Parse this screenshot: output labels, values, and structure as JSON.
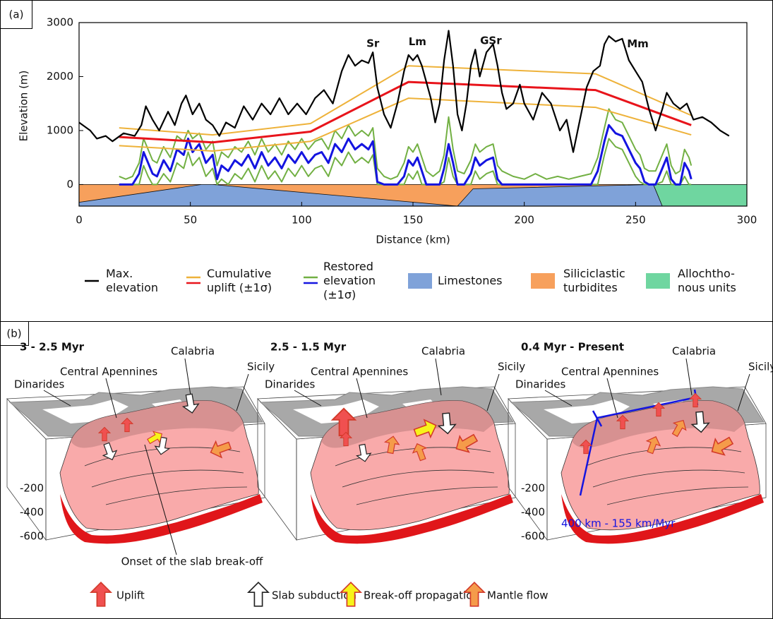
{
  "panel_a": {
    "label": "(a)"
  },
  "chart_data": {
    "type": "line",
    "xlabel": "Distance (km)",
    "ylabel": "Elevation (m)",
    "xlim": [
      0,
      300
    ],
    "ylim": [
      -400,
      3000
    ],
    "xticks": [
      0,
      50,
      100,
      150,
      200,
      250,
      300
    ],
    "yticks": [
      0,
      1000,
      2000,
      3000
    ],
    "series": [
      {
        "name": "Max. elevation",
        "color": "#000000",
        "x": [
          0,
          5,
          8,
          12,
          15,
          20,
          25,
          28,
          30,
          33,
          36,
          40,
          43,
          46,
          48,
          51,
          54,
          57,
          60,
          63,
          66,
          70,
          74,
          78,
          82,
          86,
          90,
          94,
          98,
          102,
          106,
          110,
          114,
          118,
          121,
          124,
          127,
          130,
          132,
          134,
          137,
          140,
          143,
          146,
          148,
          150,
          152,
          154,
          156,
          158,
          160,
          162,
          164,
          166,
          168,
          170,
          172,
          174,
          176,
          178,
          180,
          183,
          186,
          188,
          190,
          192,
          195,
          198,
          200,
          204,
          208,
          212,
          216,
          219,
          222,
          225,
          228,
          231,
          234,
          236,
          238,
          241,
          244,
          247,
          250,
          253,
          256,
          259,
          262,
          264,
          267,
          270,
          273,
          276,
          280,
          284,
          288,
          292
        ],
        "values": [
          1150,
          1000,
          850,
          900,
          800,
          950,
          900,
          1100,
          1450,
          1200,
          1000,
          1350,
          1100,
          1500,
          1650,
          1300,
          1500,
          1200,
          1100,
          900,
          1150,
          1050,
          1450,
          1200,
          1500,
          1300,
          1600,
          1300,
          1500,
          1300,
          1600,
          1750,
          1500,
          2100,
          2400,
          2200,
          2300,
          2250,
          2450,
          1800,
          1300,
          1050,
          1500,
          2100,
          2400,
          2300,
          2400,
          2200,
          1900,
          1600,
          1150,
          1500,
          2300,
          2850,
          2200,
          1300,
          1000,
          1500,
          2200,
          2500,
          2000,
          2450,
          2600,
          2200,
          1700,
          1400,
          1500,
          1850,
          1500,
          1200,
          1700,
          1500,
          1000,
          1200,
          600,
          1200,
          1800,
          2100,
          2200,
          2600,
          2750,
          2650,
          2700,
          2300,
          2100,
          1900,
          1400,
          1000,
          1400,
          1700,
          1500,
          1400,
          1500,
          1200,
          1250,
          1150,
          1000,
          900
        ]
      },
      {
        "name": "Cumulative uplift (±1σ)",
        "color": "#e8141b",
        "band_color": "#eeb23a",
        "x": [
          18,
          60,
          104,
          148,
          232,
          275
        ],
        "values": [
          880,
          780,
          980,
          1900,
          1750,
          1100
        ],
        "upper": [
          1050,
          920,
          1130,
          2200,
          2050,
          1280
        ],
        "lower": [
          720,
          620,
          800,
          1600,
          1430,
          920
        ]
      },
      {
        "name": "Restored elevation (±1σ)",
        "color": "#1414e0",
        "band_color": "#72b043",
        "x": [
          18,
          21,
          24,
          27,
          29,
          31,
          33,
          35,
          38,
          41,
          44,
          47,
          49,
          51,
          54,
          57,
          60,
          62,
          64,
          67,
          70,
          73,
          76,
          79,
          82,
          85,
          88,
          91,
          94,
          97,
          100,
          103,
          106,
          109,
          112,
          115,
          118,
          121,
          124,
          127,
          130,
          132,
          134,
          137,
          140,
          143,
          146,
          148,
          150,
          152,
          154,
          156,
          159,
          162,
          164,
          166,
          168,
          170,
          173,
          176,
          178,
          180,
          183,
          186,
          188,
          190,
          195,
          200,
          205,
          210,
          215,
          220,
          225,
          230,
          233,
          236,
          238,
          241,
          244,
          247,
          250,
          252,
          254,
          256,
          259,
          262,
          264,
          266,
          268,
          270,
          272,
          274,
          275
        ],
        "values": [
          0,
          0,
          0,
          200,
          600,
          400,
          200,
          150,
          450,
          250,
          650,
          550,
          850,
          600,
          750,
          400,
          550,
          100,
          350,
          250,
          450,
          350,
          550,
          300,
          600,
          350,
          500,
          300,
          550,
          400,
          600,
          400,
          550,
          600,
          400,
          750,
          600,
          850,
          650,
          750,
          650,
          800,
          50,
          0,
          0,
          0,
          150,
          450,
          350,
          500,
          250,
          0,
          0,
          0,
          300,
          750,
          400,
          0,
          0,
          200,
          500,
          350,
          450,
          500,
          100,
          0,
          0,
          0,
          0,
          0,
          0,
          0,
          0,
          0,
          250,
          800,
          1100,
          950,
          900,
          650,
          400,
          300,
          50,
          0,
          0,
          300,
          500,
          100,
          0,
          0,
          400,
          250,
          100
        ],
        "upper": [
          150,
          100,
          150,
          400,
          850,
          650,
          450,
          400,
          700,
          500,
          900,
          800,
          1000,
          850,
          950,
          650,
          800,
          350,
          600,
          500,
          700,
          600,
          800,
          550,
          850,
          600,
          750,
          550,
          800,
          650,
          850,
          650,
          800,
          850,
          650,
          1000,
          850,
          1100,
          900,
          1000,
          900,
          1050,
          300,
          150,
          100,
          150,
          400,
          700,
          600,
          750,
          500,
          250,
          150,
          250,
          550,
          1250,
          650,
          250,
          200,
          450,
          750,
          600,
          700,
          750,
          350,
          250,
          150,
          100,
          200,
          100,
          150,
          100,
          150,
          200,
          500,
          1050,
          1400,
          1200,
          1150,
          900,
          650,
          550,
          300,
          250,
          250,
          550,
          750,
          350,
          200,
          250,
          650,
          500,
          350
        ],
        "lower": [
          0,
          0,
          0,
          0,
          350,
          150,
          0,
          0,
          200,
          50,
          400,
          300,
          600,
          350,
          500,
          150,
          300,
          0,
          100,
          0,
          200,
          100,
          300,
          50,
          350,
          100,
          250,
          50,
          300,
          150,
          350,
          150,
          300,
          350,
          150,
          500,
          350,
          600,
          400,
          500,
          400,
          550,
          0,
          0,
          0,
          0,
          0,
          200,
          100,
          250,
          0,
          0,
          0,
          0,
          50,
          500,
          150,
          0,
          0,
          0,
          250,
          100,
          200,
          250,
          0,
          0,
          0,
          0,
          0,
          0,
          0,
          0,
          0,
          0,
          0,
          550,
          850,
          700,
          650,
          400,
          150,
          50,
          0,
          0,
          0,
          50,
          250,
          0,
          0,
          0,
          150,
          0,
          0
        ]
      }
    ],
    "units": [
      {
        "name": "Limestones",
        "color": "#7fa2d9",
        "polygon": [
          [
            0,
            -400
          ],
          [
            0,
            -330
          ],
          [
            55,
            0
          ],
          [
            60,
            0
          ],
          [
            170,
            -400
          ]
        ]
      },
      {
        "name": "Siliciclastic turbidites",
        "color": "#f7a05c",
        "polygon": [
          [
            0,
            0
          ],
          [
            258,
            0
          ],
          [
            262,
            -400
          ],
          [
            0,
            -400
          ]
        ]
      },
      {
        "name": "Allochtho-nous units",
        "color": "#6fd6a0",
        "polygon": [
          [
            258,
            0
          ],
          [
            300,
            0
          ],
          [
            300,
            -400
          ],
          [
            262,
            -400
          ]
        ]
      }
    ],
    "extra_limestone": {
      "polygon": [
        [
          170,
          -400
        ],
        [
          177,
          -80
        ],
        [
          258,
          0
        ],
        [
          262,
          -400
        ]
      ]
    },
    "annotations": [
      {
        "text": "Sr",
        "x": 132,
        "y": 2610
      },
      {
        "text": "Lm",
        "x": 152,
        "y": 2640
      },
      {
        "text": "GSr",
        "x": 185,
        "y": 2660
      },
      {
        "text": "Mm",
        "x": 251,
        "y": 2600
      }
    ]
  },
  "panel_b": {
    "label": "(b)",
    "panels": [
      {
        "title": "3 - 2.5 Myr",
        "calabria": "Calabria",
        "central_apennines": "Central Apennines",
        "sicily": "Sicily",
        "dinarides": "Dinarides",
        "depths": [
          "-200",
          "-400",
          "-600"
        ],
        "note": "Onset of the slab break-off"
      },
      {
        "title": "2.5 - 1.5 Myr",
        "calabria": "Calabria",
        "central_apennines": "Central Apennines",
        "sicily": "Sicily",
        "dinarides": "Dinarides"
      },
      {
        "title": "0.4 Myr - Present",
        "calabria": "Calabria",
        "central_apennines": "Central Apennines",
        "sicily": "Sicily",
        "dinarides": "Dinarides",
        "depths": [
          "-200",
          "-400",
          "-600"
        ],
        "note": "400 km - 155 km/Myr"
      }
    ],
    "legend": [
      "Uplift",
      "Slab subduction",
      "Break-off propagation",
      "Mantle flow"
    ]
  }
}
